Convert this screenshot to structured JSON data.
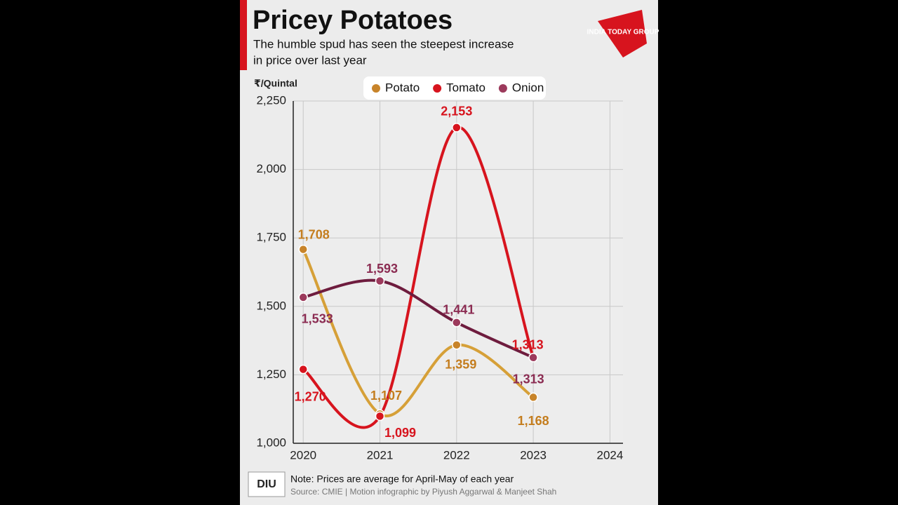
{
  "logo": "INDIA TODAY GROUP",
  "footer_logo": "DIU",
  "chart_data": {
    "type": "line",
    "title": "Pricey Potatoes",
    "subtitle": [
      "The humble spud has seen the steepest increase",
      "in price over last year"
    ],
    "y_label": "₹/Quintal",
    "note": "Note: Prices are average for April-May of each year",
    "source": "Source: CMIE | Motion infographic by Piyush Aggarwal & Manjeet Shah",
    "x": [
      2020,
      2021,
      2022,
      2023
    ],
    "xlim": [
      2019.87,
      2024.17
    ],
    "xticks": [
      2020,
      2021,
      2022,
      2023,
      2024
    ],
    "ylim": [
      1000,
      2250
    ],
    "yticks": [
      {
        "value": 1000,
        "label": "1,000"
      },
      {
        "value": 1250,
        "label": "1,250"
      },
      {
        "value": 1500,
        "label": "1,500"
      },
      {
        "value": 1750,
        "label": "1,750"
      },
      {
        "value": 2000,
        "label": "2,000"
      },
      {
        "value": 2250,
        "label": "2,250"
      }
    ],
    "grid": true,
    "legend": "top",
    "series": [
      {
        "name": "Potato",
        "color": "#d6a038",
        "values": [
          1708,
          1107,
          1359,
          1168
        ],
        "value_labels": [
          "1,708",
          "1,107",
          "1,359",
          "1,168"
        ]
      },
      {
        "name": "Tomato",
        "color": "#d7141e",
        "values": [
          1270,
          1099,
          2153,
          1313
        ],
        "value_labels": [
          "1,270",
          "1,099",
          "2,153",
          "1,313"
        ]
      },
      {
        "name": "Onion",
        "color": "#6e1c3e",
        "values": [
          1533,
          1593,
          1441,
          1313
        ],
        "value_labels": [
          "1,533",
          "1,593",
          "1,441",
          "1,313"
        ]
      }
    ]
  }
}
